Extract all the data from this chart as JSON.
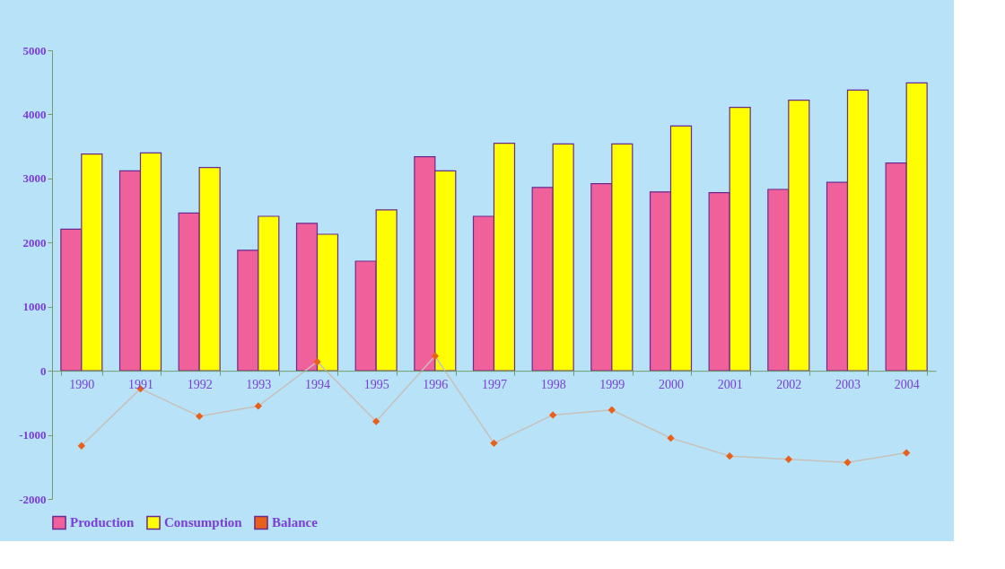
{
  "chart_data": {
    "type": "bar",
    "categories": [
      "1990",
      "1991",
      "1992",
      "1993",
      "1994",
      "1995",
      "1996",
      "1997",
      "1998",
      "1999",
      "2000",
      "2001",
      "2002",
      "2003",
      "2004"
    ],
    "series": [
      {
        "name": "Production",
        "color": "#f0609a",
        "values": [
          2210,
          3120,
          2460,
          1880,
          2300,
          1710,
          3340,
          2410,
          2860,
          2920,
          2790,
          2780,
          2830,
          2940,
          3240
        ]
      },
      {
        "name": "Consumption",
        "color": "#ffff00",
        "values": [
          3380,
          3400,
          3170,
          2410,
          2130,
          2510,
          3120,
          3550,
          3540,
          3540,
          3820,
          4110,
          4220,
          4380,
          4490
        ]
      },
      {
        "name": "Balance",
        "type": "line",
        "color": "#e8601c",
        "marker": "diamond",
        "line_style": "solid",
        "values": [
          -1170,
          -280,
          -710,
          -550,
          140,
          -790,
          230,
          -1130,
          -690,
          -610,
          -1050,
          -1330,
          -1380,
          -1430,
          -1280
        ]
      }
    ],
    "ylim": [
      -2000,
      5000
    ],
    "yticks": [
      -2000,
      -1000,
      0,
      1000,
      2000,
      3000,
      4000,
      5000
    ],
    "grid": false,
    "legend": "bottom"
  }
}
